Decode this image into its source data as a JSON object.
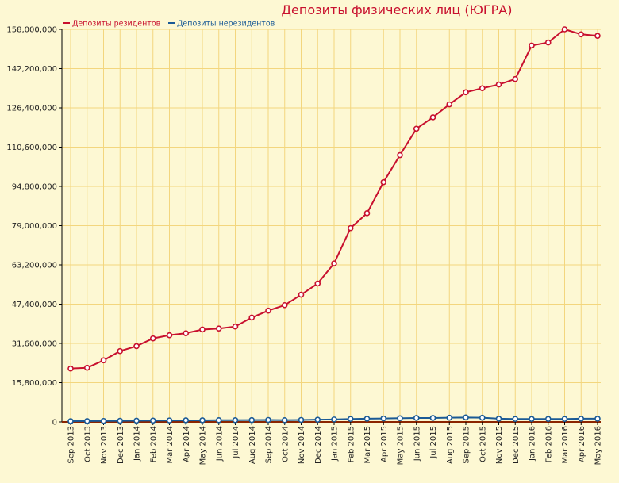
{
  "chart_data": {
    "type": "line",
    "title": "Депозиты физических лиц (ЮГРА)",
    "xlabel": "",
    "ylabel": "",
    "ylim": [
      0,
      158000000
    ],
    "yticks": [
      0,
      15800000,
      31600000,
      47400000,
      63200000,
      79000000,
      94800000,
      110600000,
      126400000,
      142200000,
      158000000
    ],
    "ytick_labels": [
      "0",
      "15,800,000",
      "31,600,000",
      "47,400,000",
      "63,200,000",
      "79,000,000",
      "94,800,000",
      "110,600,000",
      "126,400,000",
      "142,200,000",
      "158,000,000"
    ],
    "grid": true,
    "legend_position": "top-left",
    "categories": [
      "Sep 2013",
      "Oct 2013",
      "Nov 2013",
      "Dec 2013",
      "Jan 2014",
      "Feb 2014",
      "Mar 2014",
      "Apr 2014",
      "May 2014",
      "Jun 2014",
      "Jul 2014",
      "Aug 2014",
      "Sep 2014",
      "Oct 2014",
      "Nov 2014",
      "Dec 2014",
      "Jan 2015",
      "Feb 2015",
      "Mar 2015",
      "Apr 2015",
      "May 2015",
      "Jun 2015",
      "Jul 2015",
      "Aug 2015",
      "Sep 2015",
      "Oct 2015",
      "Nov 2015",
      "Dec 2015",
      "Jan 2016",
      "Feb 2016",
      "Mar 2016",
      "Apr 2016",
      "May 2016"
    ],
    "series": [
      {
        "name": "Депозиты резидентов",
        "color": "#c8102e",
        "values": [
          21500000,
          21800000,
          24800000,
          28500000,
          30500000,
          33600000,
          34900000,
          35700000,
          37200000,
          37600000,
          38400000,
          42000000,
          44800000,
          47000000,
          51200000,
          55700000,
          63800000,
          78000000,
          84000000,
          96500000,
          107400000,
          118000000,
          122600000,
          127800000,
          132700000,
          134300000,
          135800000,
          138000000,
          151500000,
          152700000,
          158000000,
          156000000,
          155400000
        ]
      },
      {
        "name": "Депозиты нерезидентов",
        "color": "#1a5a96",
        "values": [
          300000,
          350000,
          400000,
          450000,
          500000,
          550000,
          600000,
          650000,
          650000,
          700000,
          700000,
          750000,
          800000,
          700000,
          800000,
          900000,
          1000000,
          1200000,
          1300000,
          1400000,
          1500000,
          1600000,
          1600000,
          1700000,
          1800000,
          1700000,
          1300000,
          1200000,
          1200000,
          1200000,
          1200000,
          1300000,
          1300000
        ]
      }
    ]
  }
}
